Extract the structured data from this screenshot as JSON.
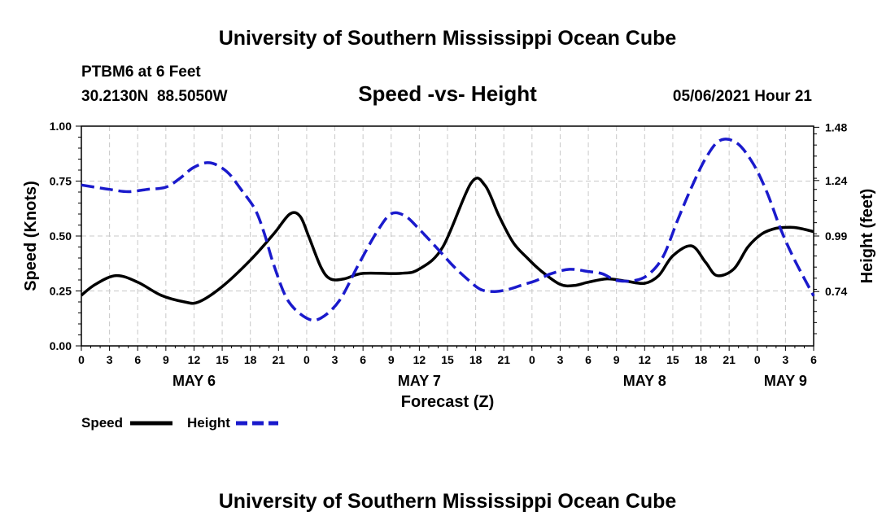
{
  "header": {
    "title": "University of Southern Mississippi Ocean Cube",
    "station": "PTBM6 at 6 Feet",
    "coords": "30.2130N  88.5050W",
    "chart_title": "Speed -vs- Height",
    "date": "05/06/2021 Hour 21"
  },
  "footer": {
    "title": "University of Southern Mississippi Ocean Cube"
  },
  "legend": {
    "speed_label": "Speed",
    "height_label": "Height"
  },
  "colors": {
    "speed": "#000000",
    "height": "#1a1acc",
    "grid": "#c8c8c8"
  },
  "chart_data": {
    "type": "line",
    "title": "Speed -vs- Height",
    "xlabel": "Forecast (Z)",
    "ylabel": "Speed (Knots)",
    "y2label": "Height (feet)",
    "xlim": [
      0,
      78
    ],
    "ylim": [
      0,
      1.0
    ],
    "y2lim": [
      0.495,
      1.485
    ],
    "yticks": [
      "0.00",
      "0.25",
      "0.50",
      "0.75",
      "1.00"
    ],
    "y2ticks": [
      "0.74",
      "0.99",
      "1.24",
      "1.48"
    ],
    "y2tick_values": [
      0.74,
      0.99,
      1.24,
      1.48
    ],
    "xtick_labels": [
      "0",
      "3",
      "6",
      "9",
      "12",
      "15",
      "18",
      "21",
      "0",
      "3",
      "6",
      "9",
      "12",
      "15",
      "18",
      "21",
      "0",
      "3",
      "6",
      "9",
      "12",
      "15",
      "18",
      "21",
      "0",
      "3",
      "6"
    ],
    "day_labels": [
      {
        "label": "MAY 6",
        "hour": 12
      },
      {
        "label": "MAY 7",
        "hour": 36
      },
      {
        "label": "MAY 8",
        "hour": 60
      },
      {
        "label": "MAY 9",
        "hour": 75
      }
    ],
    "series": [
      {
        "name": "Speed",
        "axis": "left",
        "style": "solid",
        "x": [
          0,
          1.5,
          3.7,
          6,
          8.5,
          11,
          12.5,
          15,
          18,
          20.5,
          22.2,
          23.3,
          24.2,
          25.5,
          26.5,
          28,
          30,
          34,
          36,
          38.5,
          41.5,
          43,
          44.5,
          46,
          47.5,
          49,
          51,
          52.5,
          54,
          56,
          58,
          60,
          61.5,
          63,
          65,
          66.5,
          67.7,
          69.5,
          71,
          72.5,
          74,
          75.5,
          76.5,
          78
        ],
        "y": [
          0.23,
          0.28,
          0.32,
          0.29,
          0.23,
          0.2,
          0.2,
          0.27,
          0.39,
          0.51,
          0.6,
          0.59,
          0.5,
          0.36,
          0.305,
          0.305,
          0.33,
          0.33,
          0.35,
          0.45,
          0.74,
          0.73,
          0.59,
          0.47,
          0.4,
          0.34,
          0.28,
          0.275,
          0.29,
          0.305,
          0.295,
          0.285,
          0.32,
          0.41,
          0.455,
          0.38,
          0.32,
          0.35,
          0.45,
          0.51,
          0.535,
          0.54,
          0.535,
          0.52
        ]
      },
      {
        "name": "Height",
        "axis": "right",
        "style": "dashed",
        "x": [
          0,
          3,
          5,
          7,
          9,
          10.5,
          12,
          13.7,
          15.5,
          17,
          18.5,
          19.5,
          20.5,
          22,
          24,
          25.5,
          27.5,
          29.5,
          31.5,
          33,
          34.5,
          36,
          38,
          39.5,
          41,
          42.5,
          44,
          45.5,
          47,
          48.5,
          50,
          52,
          54,
          55.5,
          57,
          59,
          60.5,
          62,
          63.5,
          65,
          66.5,
          68,
          69.8,
          71.5,
          73,
          74.5,
          76,
          78
        ],
        "y": [
          1.22,
          1.2,
          1.19,
          1.2,
          1.21,
          1.25,
          1.3,
          1.32,
          1.28,
          1.2,
          1.11,
          1.0,
          0.86,
          0.7,
          0.62,
          0.62,
          0.7,
          0.86,
          1.01,
          1.09,
          1.08,
          1.02,
          0.93,
          0.86,
          0.8,
          0.75,
          0.74,
          0.75,
          0.77,
          0.79,
          0.82,
          0.84,
          0.83,
          0.82,
          0.79,
          0.79,
          0.82,
          0.9,
          1.06,
          1.21,
          1.34,
          1.42,
          1.41,
          1.32,
          1.19,
          1.02,
          0.88,
          0.72
        ]
      }
    ]
  }
}
